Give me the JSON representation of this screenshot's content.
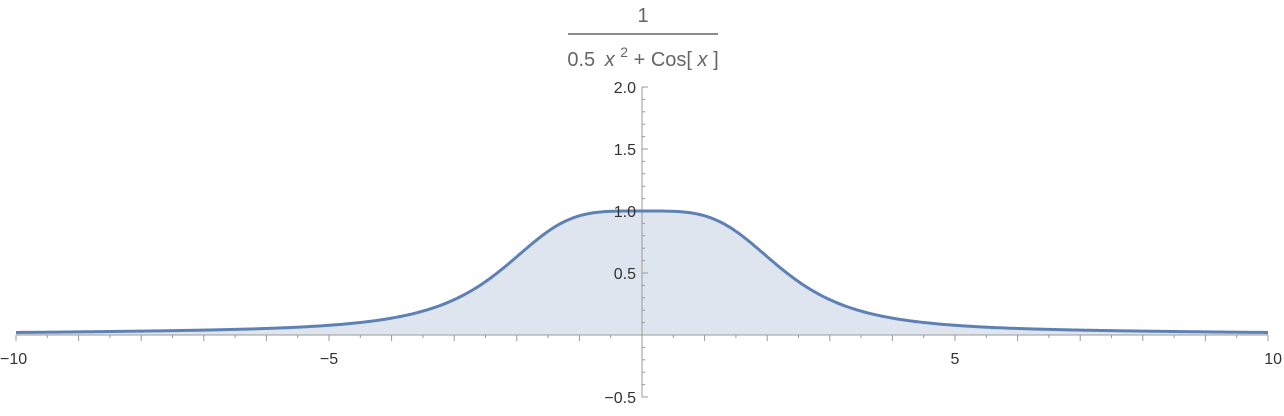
{
  "chart_data": {
    "type": "area",
    "title": {
      "numerator": "1",
      "denominator_coef": "0.5",
      "denominator_var": "x",
      "denominator_exp": "2",
      "denominator_rest": " + Cos[",
      "denominator_arg": "x",
      "denominator_close": "]"
    },
    "function": "1/(0.5 x^2 + Cos[x])",
    "xlim": [
      -10,
      10
    ],
    "ylim": [
      -0.5,
      2.0
    ],
    "x_ticks": [
      -10,
      -5,
      5,
      10
    ],
    "x_tick_labels": [
      "−10",
      "−5",
      "5",
      "10"
    ],
    "y_ticks": [
      -0.5,
      0.5,
      1.0,
      1.5,
      2.0
    ],
    "y_tick_labels": [
      "−0.5",
      "0.5",
      "1.0",
      "1.5",
      "2.0"
    ],
    "series": [
      {
        "x": [
          -10,
          -9,
          -8,
          -7,
          -6,
          -5,
          -4,
          -3,
          -2.5,
          -2,
          -1.5,
          -1,
          -0.5,
          0,
          0.5,
          1,
          1.5,
          2,
          2.5,
          3,
          4,
          5,
          6,
          7,
          8,
          9,
          10
        ],
        "y": [
          0.0201,
          0.0241,
          0.0326,
          0.0389,
          0.0532,
          0.0791,
          0.1353,
          0.2872,
          0.4187,
          0.6244,
          0.8962,
          0.967,
          0.9964,
          1.0,
          0.9964,
          0.967,
          0.8962,
          0.6244,
          0.4187,
          0.2872,
          0.1353,
          0.0791,
          0.0532,
          0.0389,
          0.0326,
          0.0241,
          0.0201
        ]
      }
    ],
    "colors": {
      "line": "#5e81b5",
      "fill": "#dfe5ef",
      "axis": "#999999",
      "tick_text": "#333333",
      "title_text": "#666666"
    }
  }
}
